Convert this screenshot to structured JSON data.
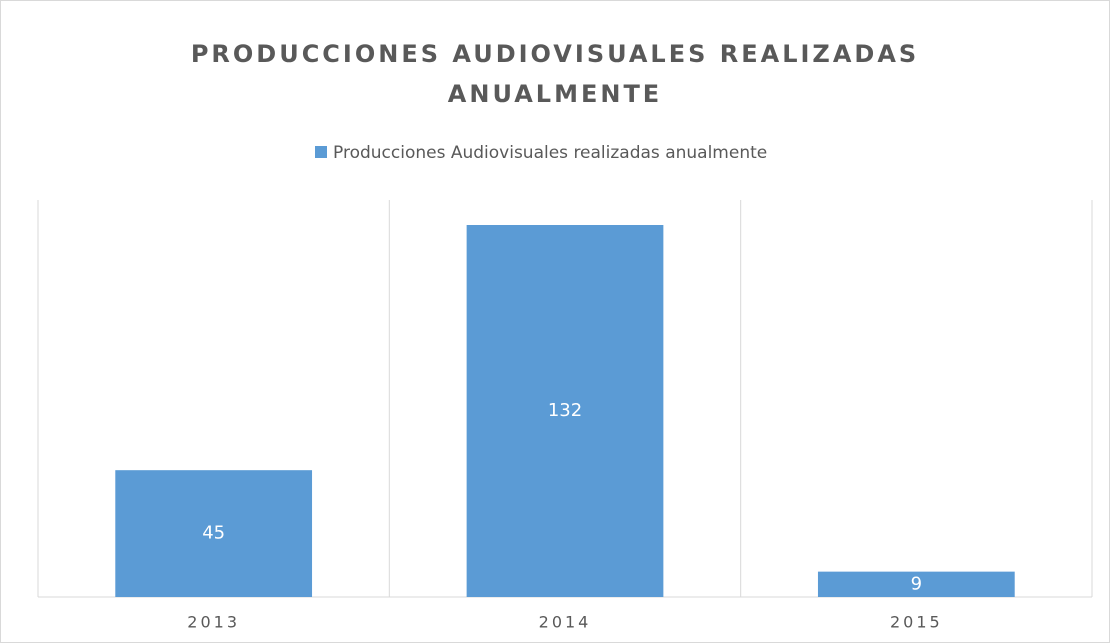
{
  "chart_data": {
    "type": "bar",
    "title": "PRODUCCIONES AUDIOVISUALES REALIZADAS ANUALMENTE",
    "categories": [
      "2013",
      "2014",
      "2015"
    ],
    "series": [
      {
        "name": "Producciones Audiovisuales realizadas anualmente",
        "color": "#5b9bd5",
        "values": [
          45,
          132,
          9
        ]
      }
    ],
    "legend": "top"
  }
}
